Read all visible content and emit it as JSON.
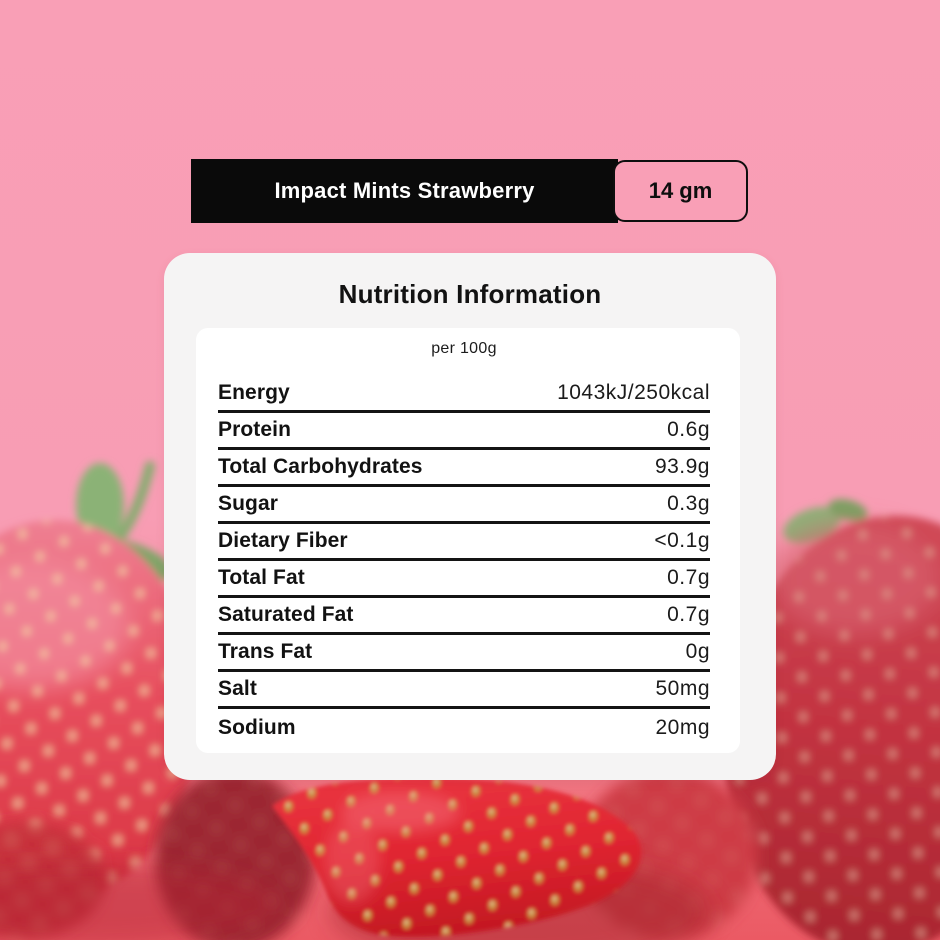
{
  "colors": {
    "background_pink": "#F99FB6",
    "floor_red": "#EB5A64",
    "banner_background": "#0A0A0A",
    "banner_text": "#FFFFFF",
    "card_background": "#F5F4F4",
    "panel_background": "#FFFFFF",
    "text_dark": "#141414"
  },
  "banner": {
    "product_name": "Impact Mints Strawberry",
    "weight_badge": "14 gm"
  },
  "nutrition_card": {
    "title": "Nutrition Information",
    "serving_note": "per 100g",
    "rows": [
      {
        "label": "Energy",
        "value": "1043kJ/250kcal"
      },
      {
        "label": "Protein",
        "value": "0.6g"
      },
      {
        "label": "Total Carbohydrates",
        "value": "93.9g"
      },
      {
        "label": "Sugar",
        "value": "0.3g"
      },
      {
        "label": "Dietary Fiber",
        "value": "<0.1g"
      },
      {
        "label": "Total Fat",
        "value": "0.7g"
      },
      {
        "label": "Saturated Fat",
        "value": "0.7g"
      },
      {
        "label": "Trans Fat",
        "value": "0g"
      },
      {
        "label": "Salt",
        "value": "50mg"
      },
      {
        "label": "Sodium",
        "value": "20mg"
      }
    ]
  }
}
